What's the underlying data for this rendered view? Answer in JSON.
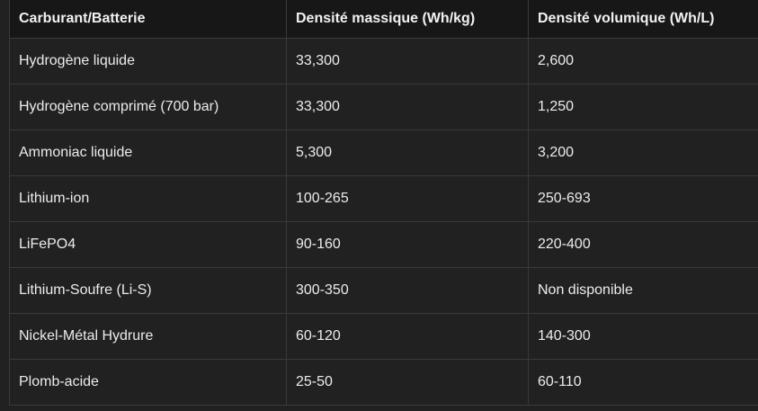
{
  "table": {
    "headers": [
      "Carburant/Batterie",
      "Densité massique (Wh/kg)",
      "Densité volumique (Wh/L)"
    ],
    "rows": [
      [
        "Hydrogène liquide",
        "33,300",
        "2,600"
      ],
      [
        "Hydrogène comprimé (700 bar)",
        "33,300",
        "1,250"
      ],
      [
        "Ammoniac liquide",
        "5,300",
        "3,200"
      ],
      [
        "Lithium-ion",
        "100-265",
        "250-693"
      ],
      [
        "LiFePO4",
        "90-160",
        "220-400"
      ],
      [
        "Lithium-Soufre (Li-S)",
        "300-350",
        "Non disponible"
      ],
      [
        "Nickel-Métal Hydrure",
        "60-120",
        "140-300"
      ],
      [
        "Plomb-acide",
        "25-50",
        "60-110"
      ]
    ]
  }
}
